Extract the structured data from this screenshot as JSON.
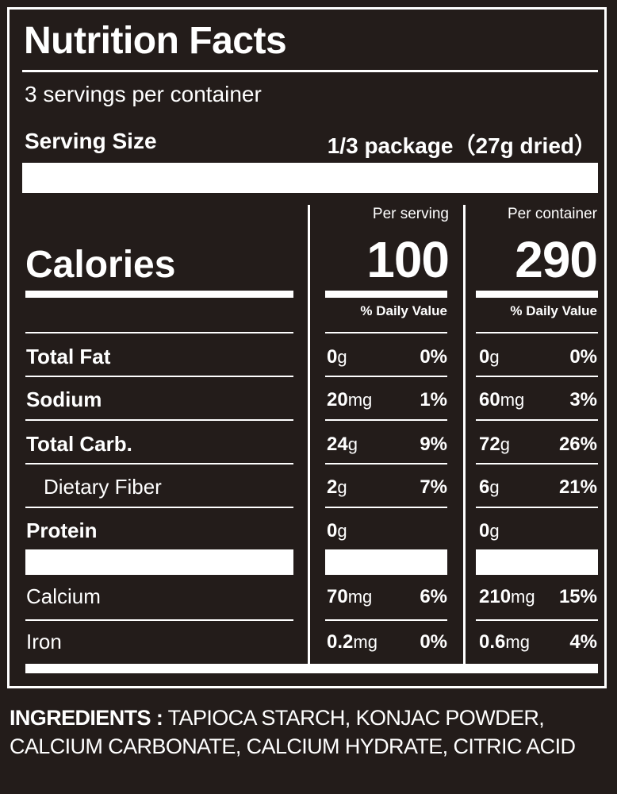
{
  "label": {
    "title": "Nutrition Facts",
    "servings_per_container": "3 servings per container",
    "serving_size_label": "Serving Size",
    "serving_size_value": "1/3 package（27g dried）",
    "columns": {
      "per_serving_label": "Per serving",
      "per_container_label": "Per container",
      "daily_value_label": "% Daily Value"
    },
    "calories": {
      "label": "Calories",
      "per_serving": "100",
      "per_container": "290"
    },
    "nutrients": [
      {
        "name": "Total Fat",
        "serving_amount": "0",
        "serving_unit": "g",
        "serving_dv": "0%",
        "container_amount": "0",
        "container_unit": "g",
        "container_dv": "0%"
      },
      {
        "name": "Sodium",
        "serving_amount": "20",
        "serving_unit": "mg",
        "serving_dv": "1%",
        "container_amount": "60",
        "container_unit": "mg",
        "container_dv": "3%"
      },
      {
        "name": "Total Carb.",
        "serving_amount": "24",
        "serving_unit": "g",
        "serving_dv": "9%",
        "container_amount": "72",
        "container_unit": "g",
        "container_dv": "26%"
      },
      {
        "name": "Dietary Fiber",
        "serving_amount": "2",
        "serving_unit": "g",
        "serving_dv": "7%",
        "container_amount": "6",
        "container_unit": "g",
        "container_dv": "21%"
      },
      {
        "name": "Protein",
        "serving_amount": "0",
        "serving_unit": "g",
        "serving_dv": "",
        "container_amount": "0",
        "container_unit": "g",
        "container_dv": ""
      }
    ],
    "minerals": [
      {
        "name": "Calcium",
        "serving_amount": "70",
        "serving_unit": "mg",
        "serving_dv": "6%",
        "container_amount": "210",
        "container_unit": "mg",
        "container_dv": "15%"
      },
      {
        "name": "Iron",
        "serving_amount": "0.2",
        "serving_unit": "mg",
        "serving_dv": "0%",
        "container_amount": "0.6",
        "container_unit": "mg",
        "container_dv": "4%"
      }
    ]
  },
  "ingredients": {
    "label": "INGREDIENTS :",
    "text": "TAPIOCA STARCH, KONJAC POWDER, CALCIUM CARBONATE, CALCIUM HYDRATE, CITRIC ACID"
  },
  "colors": {
    "background": "#231c1a",
    "foreground": "#ffffff"
  }
}
